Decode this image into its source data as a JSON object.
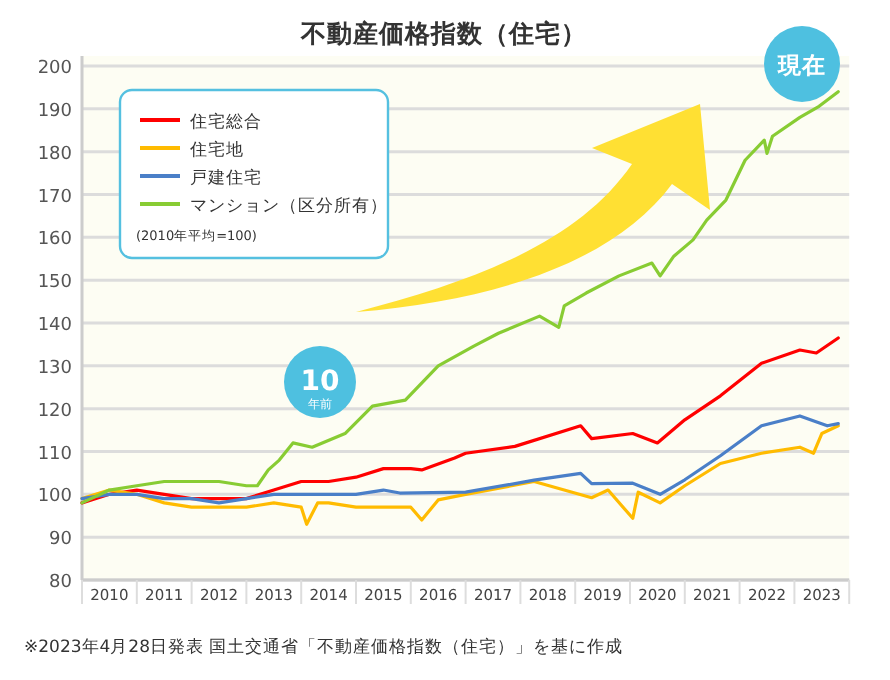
{
  "chart_data": {
    "type": "line",
    "title": "不動産価格指数（住宅）",
    "annotations": [
      "(2010年平均=100)",
      "10",
      "年前",
      "現在",
      "※2023年4月28日発表 国土交通省「不動産価格指数（住宅）」を基に作成"
    ],
    "xlim": [
      2010,
      2024
    ],
    "xticks": [
      {
        "value": 2010,
        "label": null
      },
      {
        "value": 2010.5,
        "label": "2010"
      },
      {
        "value": 2011,
        "label": null
      },
      {
        "value": 2011.5,
        "label": "2011"
      },
      {
        "value": 2012,
        "label": null
      },
      {
        "value": 2012.5,
        "label": "2012"
      },
      {
        "value": 2013,
        "label": null
      },
      {
        "value": 2013.5,
        "label": "2013"
      },
      {
        "value": 2014,
        "label": null
      },
      {
        "value": 2014.5,
        "label": "2014"
      },
      {
        "value": 2015,
        "label": null
      },
      {
        "value": 2015.5,
        "label": "2015"
      },
      {
        "value": 2016,
        "label": null
      },
      {
        "value": 2016.5,
        "label": "2016"
      },
      {
        "value": 2017,
        "label": null
      },
      {
        "value": 2017.5,
        "label": "2017"
      },
      {
        "value": 2018,
        "label": null
      },
      {
        "value": 2018.5,
        "label": "2018"
      },
      {
        "value": 2019,
        "label": null
      },
      {
        "value": 2019.5,
        "label": "2019"
      },
      {
        "value": 2020,
        "label": null
      },
      {
        "value": 2020.5,
        "label": "2020"
      },
      {
        "value": 2021,
        "label": null
      },
      {
        "value": 2021.5,
        "label": "2021"
      },
      {
        "value": 2022,
        "label": null
      },
      {
        "value": 2022.5,
        "label": "2022"
      },
      {
        "value": 2023,
        "label": null
      },
      {
        "value": 2023.5,
        "label": "2023"
      },
      {
        "value": 2024,
        "label": null
      }
    ],
    "ylim": [
      80,
      200
    ],
    "yticks": [
      80,
      90,
      100,
      110,
      120,
      130,
      140,
      150,
      160,
      170,
      180,
      190,
      200
    ],
    "grid": "y",
    "legend": "top left",
    "marker": "none",
    "line_style": "solid",
    "series": [
      {
        "name": "住宅総合",
        "color": "#ff0000",
        "x": [
          2010,
          2010.5,
          2011,
          2011.5,
          2012,
          2012.5,
          2013,
          2013.5,
          2014,
          2014.5,
          2015,
          2015.5,
          2016,
          2016.2,
          2016.8,
          2017,
          2017.9,
          2019.1,
          2019.3,
          2020.05,
          2020.5,
          2021,
          2021.65,
          2022.4,
          2023.1,
          2023.4,
          2023.8
        ],
        "values": [
          98,
          100,
          101,
          100,
          99,
          99,
          99,
          101,
          103,
          103,
          104,
          106,
          106,
          105.7,
          108.5,
          109.6,
          111.2,
          116,
          113,
          114.2,
          112,
          117.4,
          123,
          130.6,
          133.7,
          133,
          136.5
        ]
      },
      {
        "name": "住宅地",
        "color": "#ffbb00",
        "x": [
          2010,
          2010.5,
          2011,
          2011.5,
          2012,
          2012.5,
          2013,
          2013.5,
          2014,
          2014.1,
          2014.3,
          2014.5,
          2015,
          2015.5,
          2016,
          2016.2,
          2016.5,
          2017,
          2018.25,
          2019.3,
          2019.6,
          2020.05,
          2020.15,
          2020.55,
          2021,
          2021.65,
          2022.4,
          2023.1,
          2023.35,
          2023.5,
          2023.8
        ],
        "values": [
          99,
          101,
          100,
          98,
          97,
          97,
          97,
          98,
          97,
          93,
          98,
          98,
          97,
          97,
          97,
          94,
          98.7,
          100,
          103,
          99.2,
          101,
          94.4,
          100.5,
          98,
          102,
          107.2,
          109.6,
          111,
          109.6,
          114.2,
          116
        ]
      },
      {
        "name": "戸建住宅",
        "color": "#4a7fc8",
        "x": [
          2010,
          2010.5,
          2011,
          2011.5,
          2012,
          2012.5,
          2013,
          2013.5,
          2014,
          2014.5,
          2015,
          2015.5,
          2015.8,
          2017,
          2018.25,
          2019.1,
          2019.3,
          2020.05,
          2020.55,
          2021,
          2021.65,
          2022.4,
          2023.1,
          2023.6,
          2023.8
        ],
        "values": [
          99,
          100,
          100,
          99,
          99,
          98,
          99,
          100,
          100,
          100,
          100,
          101,
          100.3,
          100.5,
          103.3,
          104.9,
          102.5,
          102.6,
          100,
          103.4,
          109,
          116,
          118.3,
          116,
          116.5
        ]
      },
      {
        "name": "マンション（区分所有）",
        "color": "#88cc33",
        "x": [
          2010,
          2010.5,
          2011,
          2011.5,
          2012,
          2012.5,
          2013,
          2013.2,
          2013.4,
          2013.6,
          2013.85,
          2014.2,
          2014.8,
          2015.3,
          2015.9,
          2016.5,
          2017.15,
          2017.6,
          2018.35,
          2018.7,
          2018.8,
          2019.2,
          2019.8,
          2020.4,
          2020.55,
          2020.8,
          2021.15,
          2021.4,
          2021.75,
          2022.1,
          2022.45,
          2022.5,
          2022.6,
          2023.1,
          2023.45,
          2023.8
        ],
        "values": [
          98,
          101,
          102,
          103,
          103,
          103,
          102,
          102,
          105.7,
          108,
          112,
          111,
          114.2,
          120.6,
          122,
          130,
          134.6,
          137.6,
          141.6,
          139,
          144,
          147,
          151,
          154,
          151,
          155.6,
          159.4,
          164,
          168.7,
          178,
          182.7,
          179.6,
          183.6,
          188,
          190.6,
          194
        ]
      }
    ]
  }
}
